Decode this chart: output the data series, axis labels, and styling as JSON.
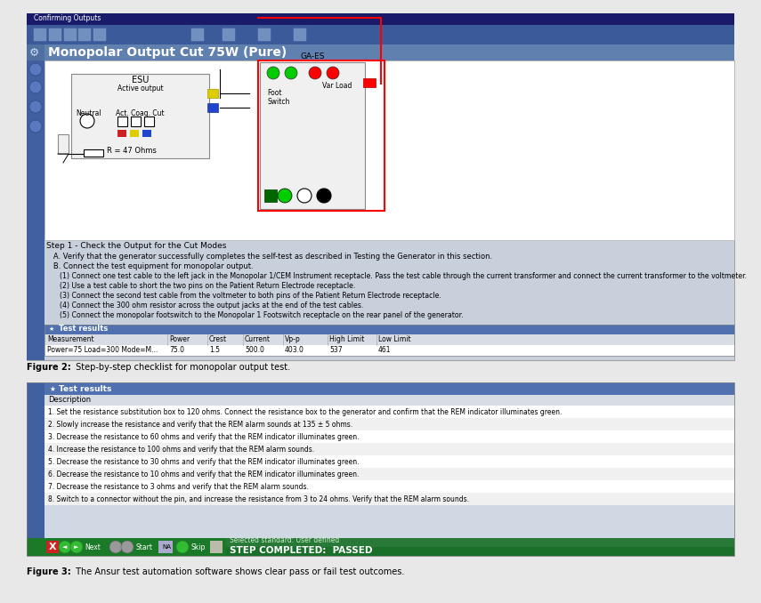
{
  "fig1_title": "Monopolar Output Cut 75W (Pure)",
  "fig2_caption_bold": "Figure 2:",
  "fig2_caption_rest": " Step-by-step checklist for monopolar output test.",
  "fig3_caption_bold": "Figure 3:",
  "fig3_caption_rest": " The Ansur test automation software shows clear pass or fail test outcomes.",
  "test_results_header": "Test results",
  "table1_cols": [
    "Measurement",
    "Power",
    "Crest",
    "Current",
    "Vp-p",
    "High Limit",
    "Low Limit"
  ],
  "table1_row": [
    "Power=75 Load=300 Mode=M...",
    "75.0",
    "1.5",
    "500.0",
    "403.0",
    "537",
    "461"
  ],
  "table2_header": "Test results",
  "table2_subheader": "Description",
  "table2_rows": [
    "1. Set the resistance substitution box to 120 ohms. Connect the resistance box to the generator and confirm that the REM indicator illuminates green.",
    "2. Slowly increase the resistance and verify that the REM alarm sounds at 135 ± 5 ohms.",
    "3. Decrease the resistance to 60 ohms and verify that the REM indicator illuminates green.",
    "4. Increase the resistance to 100 ohms and verify that the REM alarm sounds.",
    "5. Decrease the resistance to 30 ohms and verify that the REM indicator illuminates green.",
    "6. Decrease the resistance to 10 ohms and verify that the REM indicator illuminates green.",
    "7. Decrease the resistance to 3 ohms and verify that the REM alarm sounds.",
    "8. Switch to a connector without the pin, and increase the resistance from 3 to 24 ohms. Verify that the REM alarm sounds."
  ],
  "step_text_main": "Step 1 - Check the Output for the Cut Modes",
  "step_A": "   A. Verify that the generator successfully completes the self-test as described in Testing the Generator in this section.",
  "step_B": "   B. Connect the test equipment for monopolar output.",
  "step_1": "      (1) Connect one test cable to the left jack in the Monopolar 1/CEM Instrument receptacle. Pass the test cable through the current transformer and connect the current transformer to the voltmeter.",
  "step_2": "      (2) Use a test cable to short the two pins on the Patient Return Electrode receptacle.",
  "step_3": "      (3) Connect the second test cable from the voltmeter to both pins of the Patient Return Electrode receptacle.",
  "step_4": "      (4) Connect the 300 ohm resistor across the output jacks at the end of the test cables.",
  "step_5": "      (5) Connect the monopolar footswitch to the Monopolar 1 Footswitch receptacle on the rear panel of the generator.",
  "bottom_bar_label": "Selected standard: User defined",
  "bottom_bar_status": "STEP COMPLETED:  PASSED",
  "window_title": "Confirming Outputs",
  "bg_color": "#e8e8e8",
  "titlebar_color": "#1a1a6a",
  "toolbar_color": "#3a5a9a",
  "panel_header_color": "#b8c4d4",
  "panel_left_color": "#4060a0",
  "table_header_color": "#5070b0",
  "table_colhdr_color": "#d8dce4",
  "table_row_odd": "#ffffff",
  "table_row_even": "#f0f0f0",
  "bottom_bar_color": "#1a7a28",
  "bottom_selected_color": "#1a6a28",
  "circuit_bg": "#ffffff"
}
